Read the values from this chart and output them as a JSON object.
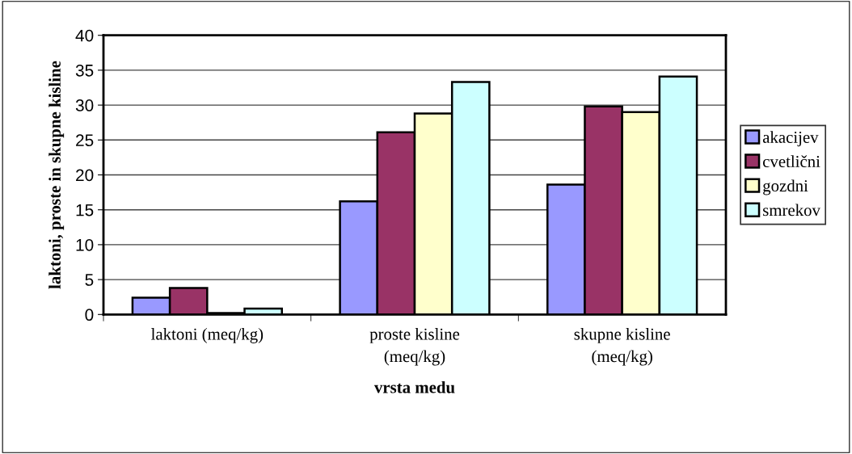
{
  "chart_data": {
    "type": "bar",
    "xlabel": "vrsta medu",
    "ylabel": "laktoni, proste in skupne kisline",
    "categories": [
      "laktoni (meq/kg)",
      "proste kisline\n(meq/kg)",
      "skupne kisline\n(meq/kg)"
    ],
    "series": [
      {
        "name": "akacijev",
        "color": "#9999ff",
        "values": [
          2.4,
          16.2,
          18.6
        ]
      },
      {
        "name": "cvetlični",
        "color": "#993366",
        "values": [
          3.8,
          26.1,
          29.8
        ]
      },
      {
        "name": "gozdni",
        "color": "#ffffcc",
        "values": [
          0.2,
          28.8,
          29.0
        ]
      },
      {
        "name": "smrekov",
        "color": "#ccffff",
        "values": [
          0.85,
          33.3,
          34.1
        ]
      }
    ],
    "ylim": [
      0,
      40
    ],
    "yticks": [
      0,
      5,
      10,
      15,
      20,
      25,
      30,
      35,
      40
    ],
    "grid": "y",
    "legend": "right"
  }
}
